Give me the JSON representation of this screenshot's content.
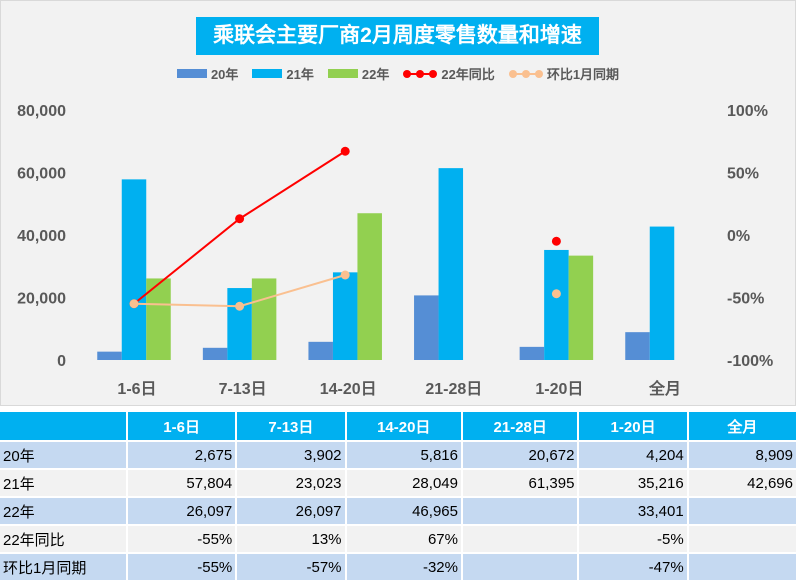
{
  "chart_data": {
    "type": "bar+line",
    "title": "乘联会主要厂商2月周度零售数量和增速",
    "categories": [
      "1-6日",
      "7-13日",
      "14-20日",
      "21-28日",
      "1-20日",
      "全月"
    ],
    "series": [
      {
        "name": "20年",
        "kind": "bar",
        "axis": "left",
        "color": "#558ed5",
        "values": [
          2675,
          3902,
          5816,
          20672,
          4204,
          8909
        ]
      },
      {
        "name": "21年",
        "kind": "bar",
        "axis": "left",
        "color": "#00b0f0",
        "values": [
          57804,
          23023,
          28049,
          61395,
          35216,
          42696
        ]
      },
      {
        "name": "22年",
        "kind": "bar",
        "axis": "left",
        "color": "#92d050",
        "values": [
          26097,
          26097,
          46965,
          null,
          33401,
          null
        ]
      },
      {
        "name": "22年同比",
        "kind": "line",
        "axis": "right",
        "color": "#ff0000",
        "values": [
          -55,
          13,
          67,
          null,
          -5,
          null
        ]
      },
      {
        "name": "环比1月同期",
        "kind": "line",
        "axis": "right",
        "color": "#fac090",
        "values": [
          -55,
          -57,
          -32,
          null,
          -47,
          null
        ]
      }
    ],
    "left_axis": {
      "range": [
        0,
        80000
      ],
      "ticks": [
        "0",
        "20,000",
        "40,000",
        "60,000",
        "80,000"
      ]
    },
    "right_axis": {
      "range": [
        -100,
        100
      ],
      "ticks": [
        "-100%",
        "-50%",
        "0%",
        "50%",
        "100%"
      ]
    },
    "legend_position": "top",
    "grid": false
  },
  "table": {
    "headers": [
      "",
      "1-6日",
      "7-13日",
      "14-20日",
      "21-28日",
      "1-20日",
      "全月"
    ],
    "rows": [
      {
        "label": "20年",
        "cells": [
          "2,675",
          "3,902",
          "5,816",
          "20,672",
          "4,204",
          "8,909"
        ]
      },
      {
        "label": "21年",
        "cells": [
          "57,804",
          "23,023",
          "28,049",
          "61,395",
          "35,216",
          "42,696"
        ]
      },
      {
        "label": "22年",
        "cells": [
          "26,097",
          "26,097",
          "46,965",
          "",
          "33,401",
          ""
        ]
      },
      {
        "label": "22年同比",
        "cells": [
          "-55%",
          "13%",
          "67%",
          "",
          "-5%",
          ""
        ]
      },
      {
        "label": "环比1月同期",
        "cells": [
          "-55%",
          "-57%",
          "-32%",
          "",
          "-47%",
          ""
        ]
      }
    ]
  }
}
